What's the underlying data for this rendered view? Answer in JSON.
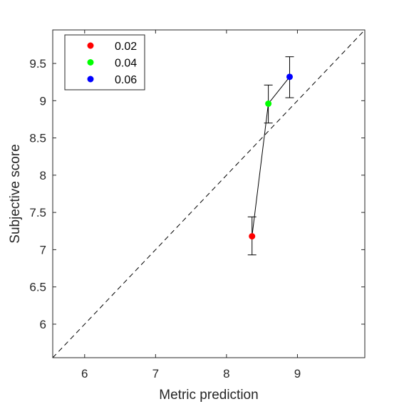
{
  "chart_data": {
    "type": "scatter",
    "xlabel": "Metric prediction",
    "ylabel": "Subjective score",
    "xlim": [
      5.55,
      9.95
    ],
    "ylim": [
      5.55,
      9.95
    ],
    "x_ticks": [
      6,
      7,
      8,
      9
    ],
    "y_ticks": [
      6,
      6.5,
      7,
      7.5,
      8,
      8.5,
      9,
      9.5
    ],
    "x_tick_labels": [
      "6",
      "7",
      "8",
      "9"
    ],
    "y_tick_labels": [
      "6",
      "6.5",
      "7",
      "7.5",
      "8",
      "8.5",
      "9",
      "9.5"
    ],
    "grid": false,
    "legend_position": "top-left",
    "reference_line": "y = x (dashed)",
    "connecting_line": true,
    "points": [
      {
        "label": "0.02",
        "x": 8.36,
        "y": 7.18,
        "y_err_low": 6.93,
        "y_err_high": 7.44,
        "color": "#ff0000"
      },
      {
        "label": "0.04",
        "x": 8.59,
        "y": 8.96,
        "y_err_low": 8.7,
        "y_err_high": 9.21,
        "color": "#00ff00"
      },
      {
        "label": "0.06",
        "x": 8.89,
        "y": 9.32,
        "y_err_low": 9.04,
        "y_err_high": 9.59,
        "color": "#0000ff"
      }
    ]
  }
}
